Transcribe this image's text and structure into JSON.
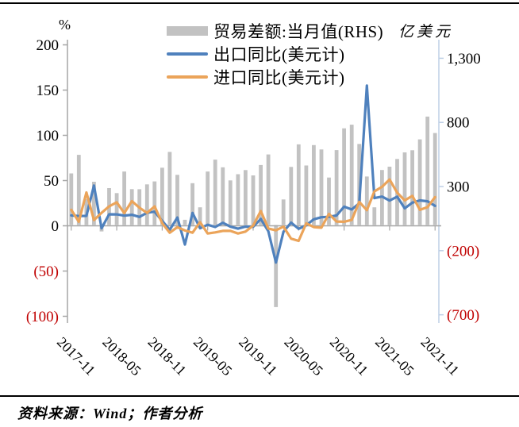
{
  "footer": {
    "source_text": "资料来源：Wind；作者分析"
  },
  "chart_data": {
    "type": "bar",
    "subtype": "combo-bar-line",
    "title": "",
    "x": [
      "2017-11",
      "2017-12",
      "2018-01",
      "2018-02",
      "2018-03",
      "2018-04",
      "2018-05",
      "2018-06",
      "2018-07",
      "2018-08",
      "2018-09",
      "2018-10",
      "2018-11",
      "2018-12",
      "2019-01",
      "2019-02",
      "2019-03",
      "2019-04",
      "2019-05",
      "2019-06",
      "2019-07",
      "2019-08",
      "2019-09",
      "2019-10",
      "2019-11",
      "2019-12",
      "2020-01",
      "2020-02",
      "2020-03",
      "2020-04",
      "2020-05",
      "2020-06",
      "2020-07",
      "2020-08",
      "2020-09",
      "2020-10",
      "2020-11",
      "2020-12",
      "2021-01",
      "2021-02",
      "2021-03",
      "2021-04",
      "2021-05",
      "2021-06",
      "2021-07",
      "2021-08",
      "2021-09",
      "2021-10",
      "2021-11"
    ],
    "x_tick_indices": [
      0,
      6,
      12,
      18,
      24,
      30,
      36,
      42,
      48
    ],
    "x_tick_labels": [
      "2017-11",
      "2018-05",
      "2018-11",
      "2019-05",
      "2019-11",
      "2020-05",
      "2020-11",
      "2021-05",
      "2021-11"
    ],
    "series": [
      {
        "name": "贸易差额:当月值(RHS)",
        "type": "bar",
        "axis": "right",
        "color": "#c2c2c2",
        "values": [
          402,
          547,
          204,
          337,
          -50,
          288,
          249,
          417,
          280,
          279,
          317,
          340,
          447,
          570,
          391,
          41,
          326,
          138,
          417,
          510,
          450,
          348,
          396,
          428,
          387,
          468,
          550,
          -640,
          199,
          453,
          629,
          464,
          623,
          589,
          370,
          584,
          754,
          782,
          632,
          378,
          138,
          429,
          455,
          515,
          566,
          583,
          668,
          845,
          717
        ]
      },
      {
        "name": "出口同比(美元计)",
        "type": "line",
        "axis": "left",
        "color": "#4f81bd",
        "values": [
          11.5,
          10.8,
          11.0,
          44.5,
          -2.7,
          12.7,
          12.6,
          11.2,
          12.2,
          9.8,
          14.5,
          15.6,
          5.4,
          -4.4,
          9.1,
          -20.7,
          14.2,
          -2.7,
          1.1,
          -1.3,
          3.3,
          -1.0,
          -3.2,
          -0.9,
          -1.1,
          7.6,
          -6.0,
          -40.6,
          -6.6,
          3.5,
          -3.3,
          0.5,
          7.2,
          9.5,
          9.9,
          11.4,
          21.1,
          18.1,
          24.8,
          154.9,
          30.6,
          32.3,
          27.9,
          32.2,
          19.3,
          25.6,
          28.1,
          27.1,
          22.0
        ]
      },
      {
        "name": "进口同比(美元计)",
        "type": "line",
        "axis": "left",
        "color": "#eba45a",
        "values": [
          17.6,
          4.5,
          36.8,
          6.3,
          14.4,
          21.5,
          26.0,
          14.1,
          27.3,
          20.0,
          14.3,
          21.4,
          3.0,
          -7.6,
          -1.5,
          -5.2,
          -7.6,
          4.0,
          -8.5,
          -7.3,
          -5.6,
          -5.6,
          -8.5,
          -6.4,
          0.3,
          16.3,
          -3.0,
          -5.0,
          -0.9,
          -14.2,
          -16.7,
          2.7,
          -1.4,
          -2.1,
          13.2,
          4.7,
          4.5,
          6.5,
          26.4,
          17.3,
          38.1,
          43.1,
          51.1,
          36.7,
          28.1,
          33.1,
          17.6,
          20.6,
          31.7
        ]
      }
    ],
    "left_axis": {
      "unit": "%",
      "range": [
        -100,
        200
      ],
      "ticks": [
        {
          "value": 200,
          "label": "200"
        },
        {
          "value": 150,
          "label": "150"
        },
        {
          "value": 100,
          "label": "100"
        },
        {
          "value": 50,
          "label": "50"
        },
        {
          "value": 0,
          "label": "0"
        },
        {
          "value": -50,
          "label": "(50)"
        },
        {
          "value": -100,
          "label": "(100)"
        }
      ]
    },
    "right_axis": {
      "unit": "亿美元",
      "range": [
        -700,
        1300
      ],
      "ticks": [
        {
          "value": 1300,
          "label": "1,300"
        },
        {
          "value": 800,
          "label": "800"
        },
        {
          "value": 300,
          "label": "300"
        },
        {
          "value": -200,
          "label": "(200)"
        },
        {
          "value": -700,
          "label": "(700)"
        }
      ]
    },
    "colors": {
      "axis_line": "#a6a6a6",
      "right_axis_line": "#bdcfe5",
      "tick_label": "#000000",
      "negative_tick_label": "#c00000"
    },
    "legend_position": "top",
    "grid": false
  }
}
